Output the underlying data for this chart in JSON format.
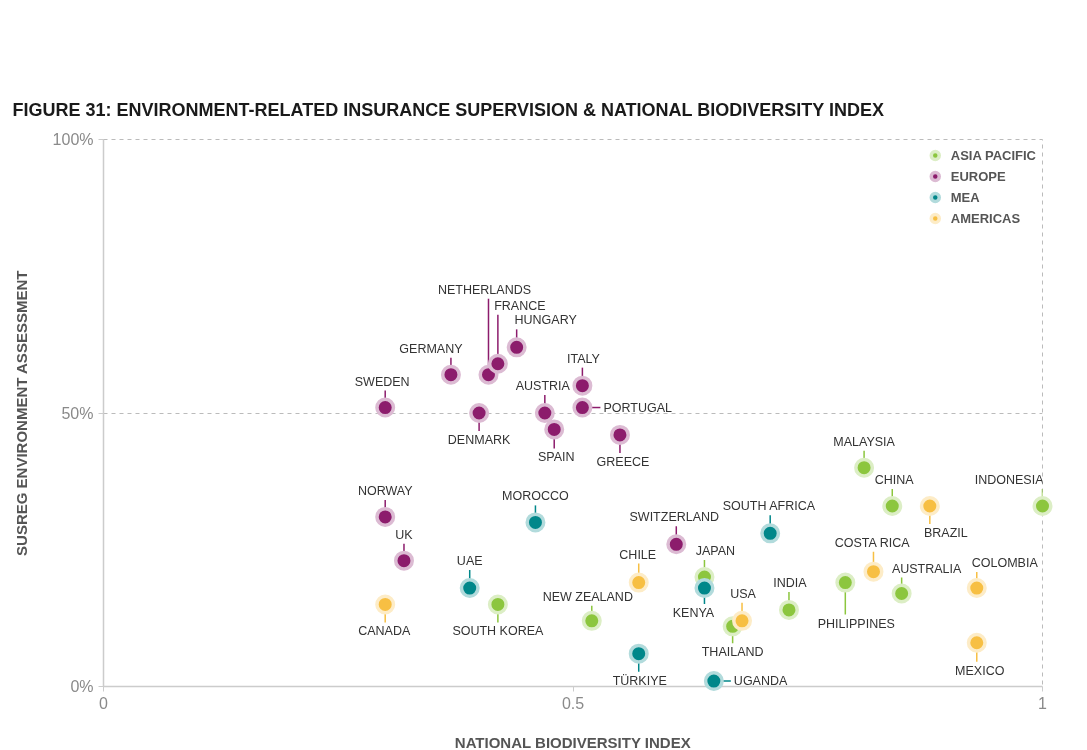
{
  "chart_data": {
    "type": "scatter",
    "title": "FIGURE 31: ENVIRONMENT-RELATED INSURANCE SUPERVISION & NATIONAL BIODIVERSITY INDEX",
    "xlabel": "NATIONAL BIODIVERSITY INDEX",
    "ylabel": "SUSREG ENVIRONMENT ASSESSMENT",
    "xlim": [
      0,
      1
    ],
    "ylim": [
      0,
      100
    ],
    "xticks": [
      0,
      0.5,
      1
    ],
    "yticks": [
      {
        "value": 0,
        "label": "0%"
      },
      {
        "value": 50,
        "label": "50%"
      },
      {
        "value": 100,
        "label": "100%"
      }
    ],
    "grid": "y",
    "legend": "top right",
    "marker": "circle",
    "series": [
      {
        "name": "ASIA PACIFIC",
        "color": "#8cc63e",
        "x": [
          0.42,
          0.52,
          0.64,
          0.67,
          0.73,
          0.79,
          0.85,
          0.81,
          0.84,
          1.0
        ],
        "values": [
          15,
          12,
          20,
          11,
          14,
          19,
          17,
          40,
          33,
          33
        ]
      },
      {
        "name": "EUROPE",
        "color": "#8c1c6c",
        "x": [
          0.3,
          0.37,
          0.41,
          0.42,
          0.44,
          0.51,
          0.51,
          0.4,
          0.47,
          0.48,
          0.55,
          0.3,
          0.32,
          0.61
        ],
        "values": [
          51,
          57,
          57,
          59,
          62,
          55,
          51,
          50,
          50,
          47,
          46,
          31,
          23,
          26
        ]
      },
      {
        "name": "MEA",
        "color": "#00878a",
        "x": [
          0.46,
          0.39,
          0.64,
          0.57,
          0.65,
          0.71
        ],
        "values": [
          30,
          18,
          18,
          6,
          1,
          28
        ]
      },
      {
        "name": "AMERICAS",
        "color": "#f7bf43",
        "x": [
          0.3,
          0.57,
          0.68,
          0.82,
          0.88,
          0.93,
          0.93
        ],
        "values": [
          15,
          19,
          12,
          21,
          33,
          18,
          8
        ]
      }
    ],
    "annotations": [
      {
        "text": "SOUTH KOREA",
        "x": 0.42,
        "y": 15
      },
      {
        "text": "NEW ZEALAND",
        "x": 0.52,
        "y": 12
      },
      {
        "text": "JAPAN",
        "x": 0.64,
        "y": 20
      },
      {
        "text": "THAILAND",
        "x": 0.67,
        "y": 11
      },
      {
        "text": "INDIA",
        "x": 0.73,
        "y": 14
      },
      {
        "text": "PHILIPPINES",
        "x": 0.79,
        "y": 19
      },
      {
        "text": "AUSTRALIA",
        "x": 0.85,
        "y": 17
      },
      {
        "text": "MALAYSIA",
        "x": 0.81,
        "y": 40
      },
      {
        "text": "CHINA",
        "x": 0.84,
        "y": 33
      },
      {
        "text": "INDONESIA",
        "x": 1.0,
        "y": 33
      },
      {
        "text": "SWEDEN",
        "x": 0.3,
        "y": 51
      },
      {
        "text": "GERMANY",
        "x": 0.37,
        "y": 57
      },
      {
        "text": "NETHERLANDS",
        "x": 0.41,
        "y": 57
      },
      {
        "text": "FRANCE",
        "x": 0.42,
        "y": 59
      },
      {
        "text": "HUNGARY",
        "x": 0.44,
        "y": 62
      },
      {
        "text": "ITALY",
        "x": 0.51,
        "y": 55
      },
      {
        "text": "PORTUGAL",
        "x": 0.51,
        "y": 51
      },
      {
        "text": "DENMARK",
        "x": 0.4,
        "y": 50
      },
      {
        "text": "AUSTRIA",
        "x": 0.47,
        "y": 50
      },
      {
        "text": "SPAIN",
        "x": 0.48,
        "y": 47
      },
      {
        "text": "GREECE",
        "x": 0.55,
        "y": 46
      },
      {
        "text": "NORWAY",
        "x": 0.3,
        "y": 31
      },
      {
        "text": "UK",
        "x": 0.32,
        "y": 23
      },
      {
        "text": "SWITZERLAND",
        "x": 0.61,
        "y": 26
      },
      {
        "text": "MOROCCO",
        "x": 0.46,
        "y": 30
      },
      {
        "text": "UAE",
        "x": 0.39,
        "y": 18
      },
      {
        "text": "KENYA",
        "x": 0.64,
        "y": 18
      },
      {
        "text": "TÜRKIYE",
        "x": 0.57,
        "y": 6
      },
      {
        "text": "UGANDA",
        "x": 0.65,
        "y": 1
      },
      {
        "text": "SOUTH AFRICA",
        "x": 0.71,
        "y": 28
      },
      {
        "text": "CANADA",
        "x": 0.3,
        "y": 15
      },
      {
        "text": "CHILE",
        "x": 0.57,
        "y": 19
      },
      {
        "text": "USA",
        "x": 0.68,
        "y": 12
      },
      {
        "text": "COSTA RICA",
        "x": 0.82,
        "y": 21
      },
      {
        "text": "BRAZIL",
        "x": 0.88,
        "y": 33
      },
      {
        "text": "COLOMBIA",
        "x": 0.93,
        "y": 18
      },
      {
        "text": "MEXICO",
        "x": 0.93,
        "y": 8
      }
    ]
  }
}
